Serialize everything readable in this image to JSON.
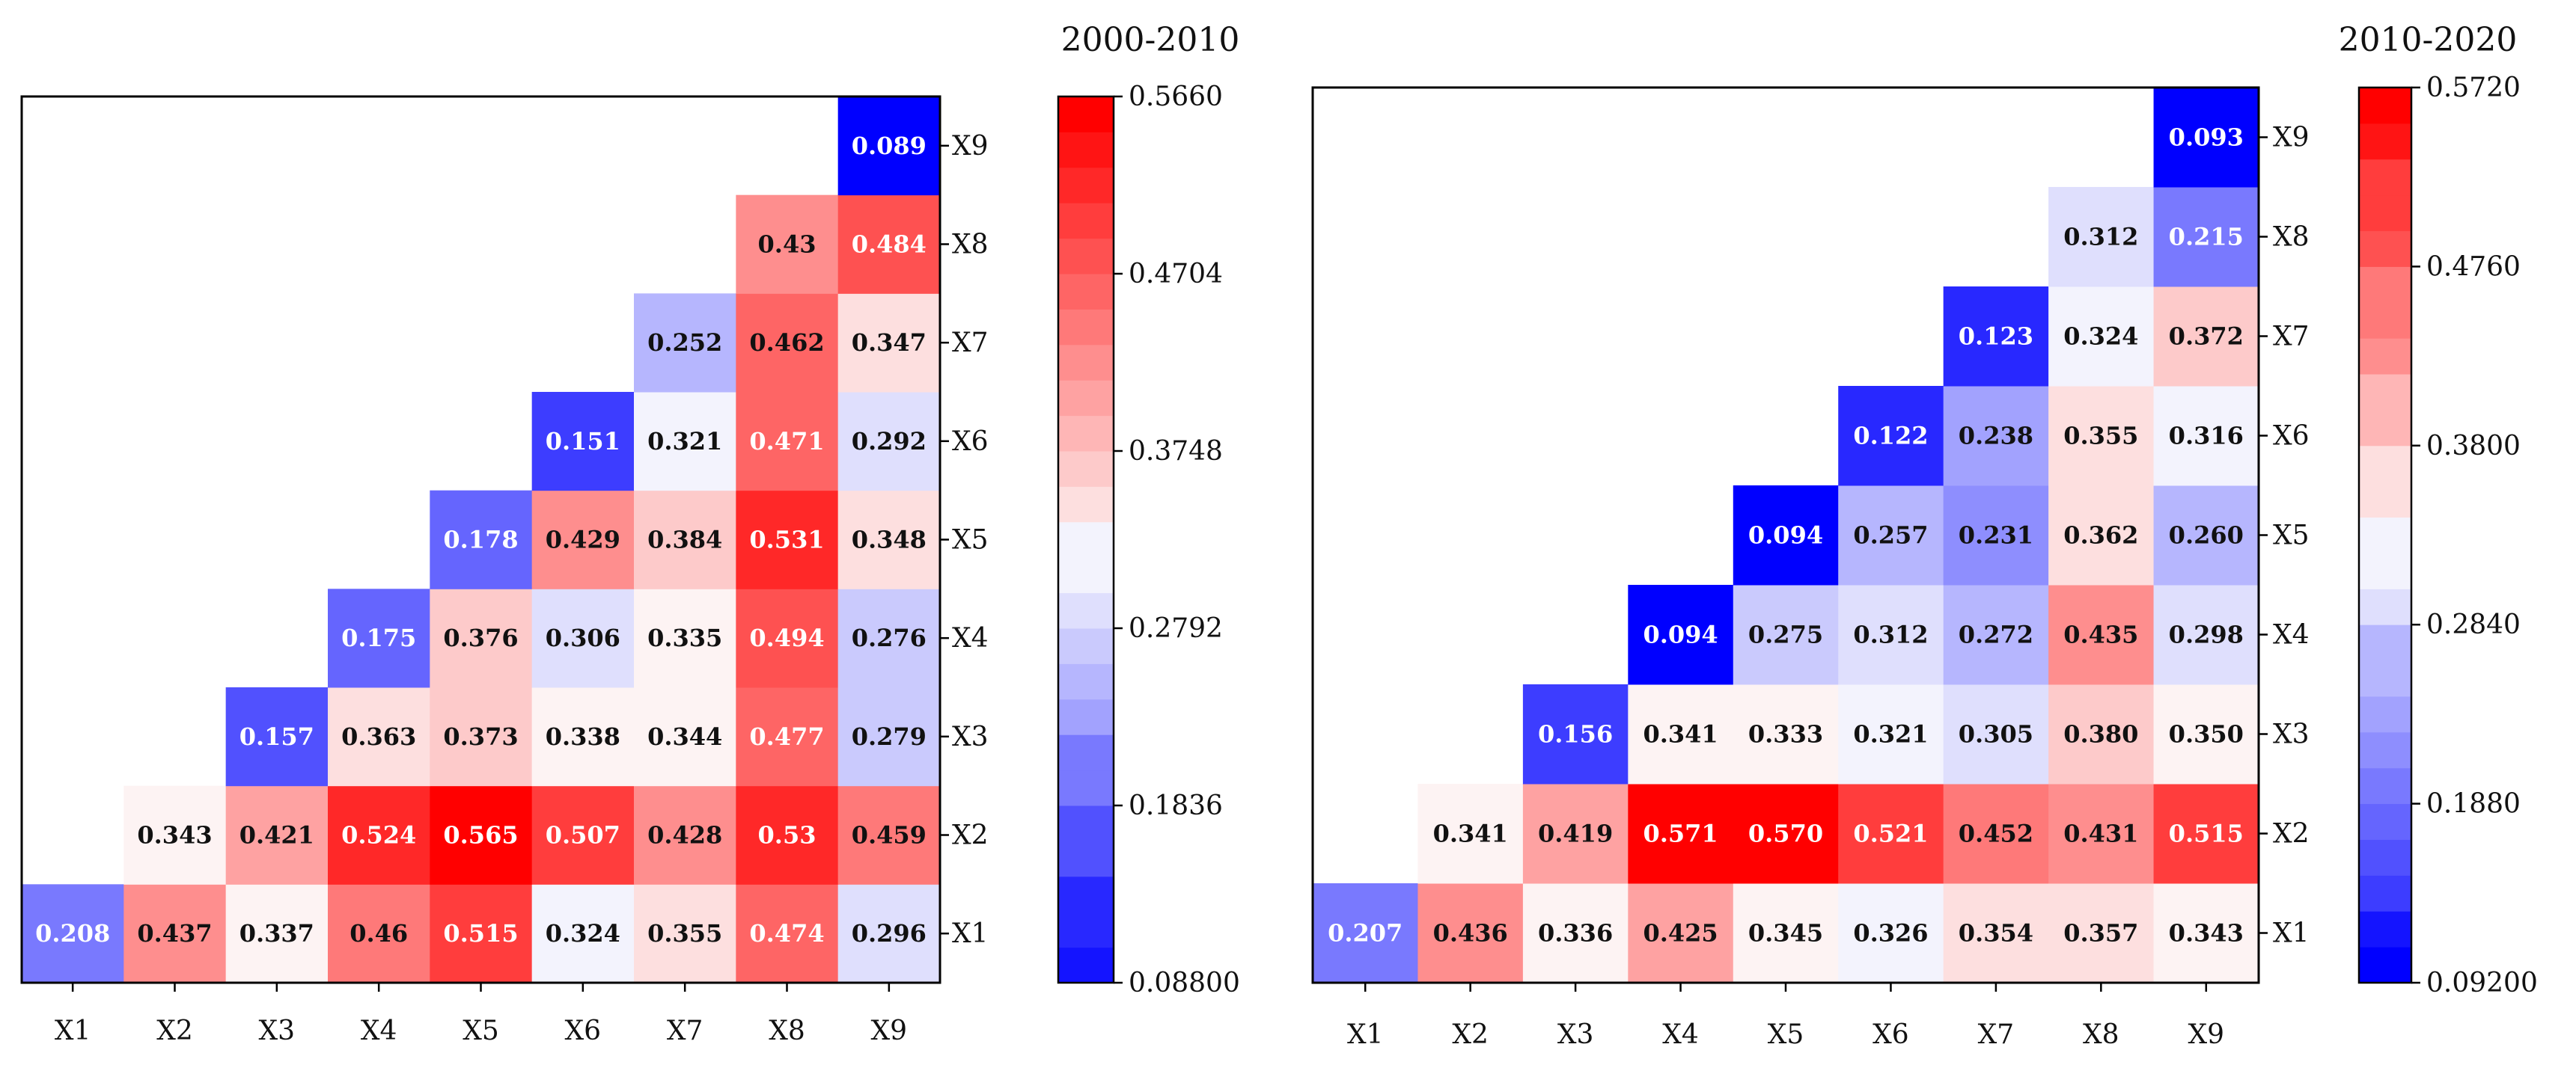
{
  "chart_data": [
    {
      "type": "heatmap",
      "title": "2000-2010",
      "xlabels": [
        "X1",
        "X2",
        "X3",
        "X4",
        "X5",
        "X6",
        "X7",
        "X8",
        "X9"
      ],
      "ylabels": [
        "X1",
        "X2",
        "X3",
        "X4",
        "X5",
        "X6",
        "X7",
        "X8",
        "X9"
      ],
      "vmin": 0.088,
      "vmax": 0.566,
      "colorbar_ticks": [
        "0.5660",
        "0.4704",
        "0.3748",
        "0.2792",
        "0.1836",
        "0.08800"
      ],
      "colorbar_tick_values": [
        0.566,
        0.4704,
        0.3748,
        0.2792,
        0.1836,
        0.088
      ],
      "cells": [
        [
          [
            "0.208",
            0.208
          ],
          [
            "0.437",
            0.437
          ],
          [
            "0.337",
            0.337
          ],
          [
            "0.46",
            0.46
          ],
          [
            "0.515",
            0.515
          ],
          [
            "0.324",
            0.324
          ],
          [
            "0.355",
            0.355
          ],
          [
            "0.474",
            0.474
          ],
          [
            "0.296",
            0.296
          ]
        ],
        [
          null,
          [
            "0.343",
            0.343
          ],
          [
            "0.421",
            0.421
          ],
          [
            "0.524",
            0.524
          ],
          [
            "0.565",
            0.565
          ],
          [
            "0.507",
            0.507
          ],
          [
            "0.428",
            0.428
          ],
          [
            "0.53",
            0.53
          ],
          [
            "0.459",
            0.459
          ]
        ],
        [
          null,
          null,
          [
            "0.157",
            0.157
          ],
          [
            "0.363",
            0.363
          ],
          [
            "0.373",
            0.373
          ],
          [
            "0.338",
            0.338
          ],
          [
            "0.344",
            0.344
          ],
          [
            "0.477",
            0.477
          ],
          [
            "0.279",
            0.279
          ]
        ],
        [
          null,
          null,
          null,
          [
            "0.175",
            0.175
          ],
          [
            "0.376",
            0.376
          ],
          [
            "0.306",
            0.306
          ],
          [
            "0.335",
            0.335
          ],
          [
            "0.494",
            0.494
          ],
          [
            "0.276",
            0.276
          ]
        ],
        [
          null,
          null,
          null,
          null,
          [
            "0.178",
            0.178
          ],
          [
            "0.429",
            0.429
          ],
          [
            "0.384",
            0.384
          ],
          [
            "0.531",
            0.531
          ],
          [
            "0.348",
            0.348
          ]
        ],
        [
          null,
          null,
          null,
          null,
          null,
          [
            "0.151",
            0.151
          ],
          [
            "0.321",
            0.321
          ],
          [
            "0.471",
            0.471
          ],
          [
            "0.292",
            0.292
          ]
        ],
        [
          null,
          null,
          null,
          null,
          null,
          null,
          [
            "0.252",
            0.252
          ],
          [
            "0.462",
            0.462
          ],
          [
            "0.347",
            0.347
          ]
        ],
        [
          null,
          null,
          null,
          null,
          null,
          null,
          null,
          [
            "0.43",
            0.43
          ],
          [
            "0.484",
            0.484
          ]
        ],
        [
          null,
          null,
          null,
          null,
          null,
          null,
          null,
          null,
          [
            "0.089",
            0.089
          ]
        ]
      ]
    },
    {
      "type": "heatmap",
      "title": "2010-2020",
      "xlabels": [
        "X1",
        "X2",
        "X3",
        "X4",
        "X5",
        "X6",
        "X7",
        "X8",
        "X9"
      ],
      "ylabels": [
        "X1",
        "X2",
        "X3",
        "X4",
        "X5",
        "X6",
        "X7",
        "X8",
        "X9"
      ],
      "vmin": 0.092,
      "vmax": 0.572,
      "colorbar_ticks": [
        "0.5720",
        "0.4760",
        "0.3800",
        "0.2840",
        "0.1880",
        "0.09200"
      ],
      "colorbar_tick_values": [
        0.572,
        0.476,
        0.38,
        0.284,
        0.188,
        0.092
      ],
      "cells": [
        [
          [
            "0.207",
            0.207
          ],
          [
            "0.436",
            0.436
          ],
          [
            "0.336",
            0.336
          ],
          [
            "0.425",
            0.425
          ],
          [
            "0.345",
            0.345
          ],
          [
            "0.326",
            0.326
          ],
          [
            "0.354",
            0.354
          ],
          [
            "0.357",
            0.357
          ],
          [
            "0.343",
            0.343
          ]
        ],
        [
          null,
          [
            "0.341",
            0.341
          ],
          [
            "0.419",
            0.419
          ],
          [
            "0.571",
            0.571
          ],
          [
            "0.570",
            0.57
          ],
          [
            "0.521",
            0.521
          ],
          [
            "0.452",
            0.452
          ],
          [
            "0.431",
            0.431
          ],
          [
            "0.515",
            0.515
          ]
        ],
        [
          null,
          null,
          [
            "0.156",
            0.156
          ],
          [
            "0.341",
            0.341
          ],
          [
            "0.333",
            0.333
          ],
          [
            "0.321",
            0.321
          ],
          [
            "0.305",
            0.305
          ],
          [
            "0.380",
            0.38
          ],
          [
            "0.350",
            0.35
          ]
        ],
        [
          null,
          null,
          null,
          [
            "0.094",
            0.094
          ],
          [
            "0.275",
            0.275
          ],
          [
            "0.312",
            0.312
          ],
          [
            "0.272",
            0.272
          ],
          [
            "0.435",
            0.435
          ],
          [
            "0.298",
            0.298
          ]
        ],
        [
          null,
          null,
          null,
          null,
          [
            "0.094",
            0.094
          ],
          [
            "0.257",
            0.257
          ],
          [
            "0.231",
            0.231
          ],
          [
            "0.362",
            0.362
          ],
          [
            "0.260",
            0.26
          ]
        ],
        [
          null,
          null,
          null,
          null,
          null,
          [
            "0.122",
            0.122
          ],
          [
            "0.238",
            0.238
          ],
          [
            "0.355",
            0.355
          ],
          [
            "0.316",
            0.316
          ]
        ],
        [
          null,
          null,
          null,
          null,
          null,
          null,
          [
            "0.123",
            0.123
          ],
          [
            "0.324",
            0.324
          ],
          [
            "0.372",
            0.372
          ]
        ],
        [
          null,
          null,
          null,
          null,
          null,
          null,
          null,
          [
            "0.312",
            0.312
          ],
          [
            "0.215",
            0.215
          ]
        ],
        [
          null,
          null,
          null,
          null,
          null,
          null,
          null,
          null,
          [
            "0.093",
            0.093
          ]
        ]
      ]
    }
  ]
}
